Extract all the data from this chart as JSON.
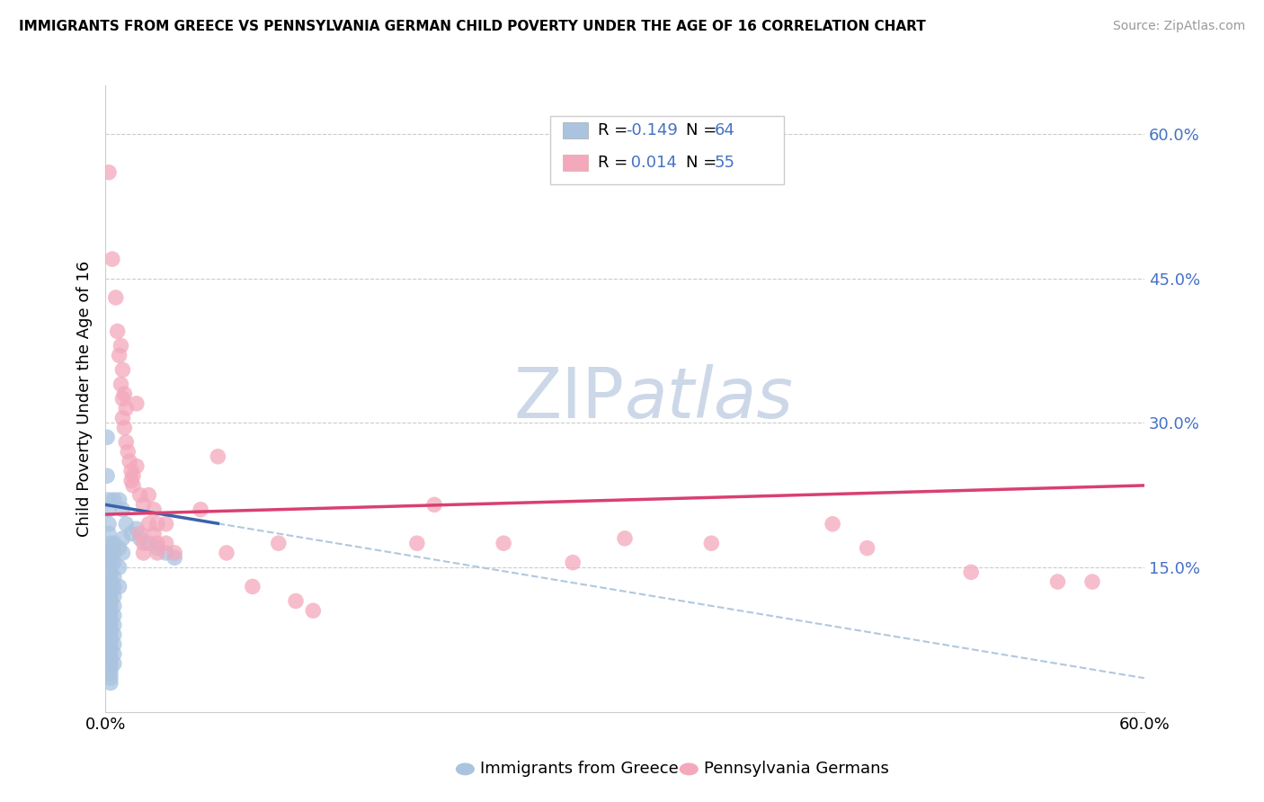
{
  "title": "IMMIGRANTS FROM GREECE VS PENNSYLVANIA GERMAN CHILD POVERTY UNDER THE AGE OF 16 CORRELATION CHART",
  "source": "Source: ZipAtlas.com",
  "ylabel": "Child Poverty Under the Age of 16",
  "right_yticks": [
    "60.0%",
    "45.0%",
    "30.0%",
    "15.0%"
  ],
  "right_ytick_vals": [
    0.6,
    0.45,
    0.3,
    0.15
  ],
  "legend_bottom": [
    "Immigrants from Greece",
    "Pennsylvania Germans"
  ],
  "blue_color": "#aac4e0",
  "pink_color": "#f4a8bc",
  "trend_blue_color": "#3a62aa",
  "trend_pink_color": "#d94070",
  "trend_dashed_color": "#b0c8e0",
  "watermark_color": "#ccd8e8",
  "xmin": 0.0,
  "xmax": 0.6,
  "ymin": 0.0,
  "ymax": 0.65,
  "blue_trend_x0": 0.0,
  "blue_trend_y0": 0.215,
  "blue_trend_x1": 0.6,
  "blue_trend_y1": 0.035,
  "blue_trend_solid_end": 0.065,
  "pink_trend_x0": 0.0,
  "pink_trend_y0": 0.205,
  "pink_trend_x1": 0.6,
  "pink_trend_y1": 0.235,
  "blue_scatter": [
    [
      0.001,
      0.285
    ],
    [
      0.001,
      0.245
    ],
    [
      0.002,
      0.22
    ],
    [
      0.002,
      0.21
    ],
    [
      0.002,
      0.195
    ],
    [
      0.002,
      0.185
    ],
    [
      0.003,
      0.175
    ],
    [
      0.003,
      0.17
    ],
    [
      0.003,
      0.165
    ],
    [
      0.003,
      0.16
    ],
    [
      0.003,
      0.155
    ],
    [
      0.003,
      0.15
    ],
    [
      0.003,
      0.145
    ],
    [
      0.003,
      0.14
    ],
    [
      0.003,
      0.135
    ],
    [
      0.003,
      0.13
    ],
    [
      0.003,
      0.125
    ],
    [
      0.003,
      0.12
    ],
    [
      0.003,
      0.115
    ],
    [
      0.003,
      0.11
    ],
    [
      0.003,
      0.105
    ],
    [
      0.003,
      0.1
    ],
    [
      0.003,
      0.095
    ],
    [
      0.003,
      0.09
    ],
    [
      0.003,
      0.085
    ],
    [
      0.003,
      0.08
    ],
    [
      0.003,
      0.075
    ],
    [
      0.003,
      0.07
    ],
    [
      0.003,
      0.065
    ],
    [
      0.003,
      0.06
    ],
    [
      0.003,
      0.055
    ],
    [
      0.003,
      0.05
    ],
    [
      0.003,
      0.045
    ],
    [
      0.003,
      0.04
    ],
    [
      0.003,
      0.035
    ],
    [
      0.003,
      0.03
    ],
    [
      0.005,
      0.22
    ],
    [
      0.005,
      0.175
    ],
    [
      0.005,
      0.165
    ],
    [
      0.005,
      0.155
    ],
    [
      0.005,
      0.14
    ],
    [
      0.005,
      0.13
    ],
    [
      0.005,
      0.12
    ],
    [
      0.005,
      0.11
    ],
    [
      0.005,
      0.1
    ],
    [
      0.005,
      0.09
    ],
    [
      0.005,
      0.08
    ],
    [
      0.005,
      0.07
    ],
    [
      0.005,
      0.06
    ],
    [
      0.005,
      0.05
    ],
    [
      0.008,
      0.22
    ],
    [
      0.008,
      0.17
    ],
    [
      0.008,
      0.15
    ],
    [
      0.008,
      0.13
    ],
    [
      0.01,
      0.21
    ],
    [
      0.01,
      0.18
    ],
    [
      0.01,
      0.165
    ],
    [
      0.012,
      0.195
    ],
    [
      0.015,
      0.185
    ],
    [
      0.018,
      0.19
    ],
    [
      0.02,
      0.18
    ],
    [
      0.025,
      0.175
    ],
    [
      0.03,
      0.17
    ],
    [
      0.035,
      0.165
    ],
    [
      0.04,
      0.16
    ]
  ],
  "pink_scatter": [
    [
      0.002,
      0.56
    ],
    [
      0.004,
      0.47
    ],
    [
      0.006,
      0.43
    ],
    [
      0.007,
      0.395
    ],
    [
      0.008,
      0.37
    ],
    [
      0.009,
      0.34
    ],
    [
      0.009,
      0.38
    ],
    [
      0.01,
      0.355
    ],
    [
      0.01,
      0.325
    ],
    [
      0.01,
      0.305
    ],
    [
      0.011,
      0.295
    ],
    [
      0.011,
      0.33
    ],
    [
      0.012,
      0.315
    ],
    [
      0.012,
      0.28
    ],
    [
      0.013,
      0.27
    ],
    [
      0.014,
      0.26
    ],
    [
      0.015,
      0.25
    ],
    [
      0.015,
      0.24
    ],
    [
      0.016,
      0.235
    ],
    [
      0.016,
      0.245
    ],
    [
      0.018,
      0.32
    ],
    [
      0.018,
      0.255
    ],
    [
      0.02,
      0.225
    ],
    [
      0.02,
      0.185
    ],
    [
      0.022,
      0.215
    ],
    [
      0.022,
      0.175
    ],
    [
      0.022,
      0.165
    ],
    [
      0.025,
      0.225
    ],
    [
      0.025,
      0.195
    ],
    [
      0.028,
      0.21
    ],
    [
      0.028,
      0.185
    ],
    [
      0.03,
      0.195
    ],
    [
      0.03,
      0.175
    ],
    [
      0.03,
      0.165
    ],
    [
      0.035,
      0.195
    ],
    [
      0.035,
      0.175
    ],
    [
      0.04,
      0.165
    ],
    [
      0.055,
      0.21
    ],
    [
      0.065,
      0.265
    ],
    [
      0.07,
      0.165
    ],
    [
      0.085,
      0.13
    ],
    [
      0.1,
      0.175
    ],
    [
      0.11,
      0.115
    ],
    [
      0.12,
      0.105
    ],
    [
      0.18,
      0.175
    ],
    [
      0.19,
      0.215
    ],
    [
      0.23,
      0.175
    ],
    [
      0.27,
      0.155
    ],
    [
      0.3,
      0.18
    ],
    [
      0.35,
      0.175
    ],
    [
      0.42,
      0.195
    ],
    [
      0.44,
      0.17
    ],
    [
      0.5,
      0.145
    ],
    [
      0.55,
      0.135
    ],
    [
      0.57,
      0.135
    ]
  ]
}
